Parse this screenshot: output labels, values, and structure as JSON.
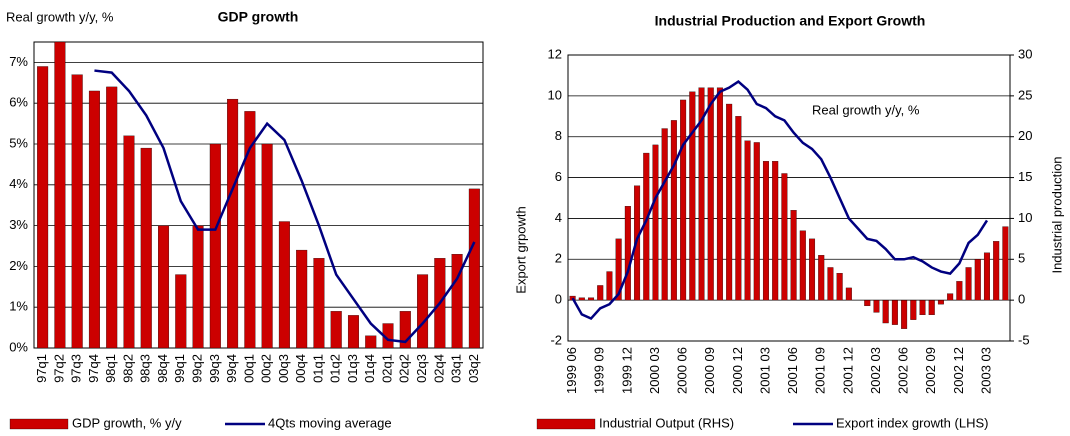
{
  "chart_data": [
    {
      "type": "combo",
      "title": "GDP growth",
      "annotation": "Real growth y/y, %",
      "categories": [
        "97q1",
        "97q2",
        "97q3",
        "97q4",
        "98q1",
        "98q2",
        "98q3",
        "98q4",
        "99q1",
        "99q2",
        "99q3",
        "99q4",
        "00q1",
        "00q2",
        "00q3",
        "00q4",
        "01q1",
        "01q2",
        "01q3",
        "01q4",
        "02q1",
        "02q2",
        "02q3",
        "02q4",
        "03q1",
        "03q2"
      ],
      "series": [
        {
          "name": "GDP growth, % y/y",
          "kind": "bar",
          "color": "#cc0000",
          "values": [
            6.9,
            7.5,
            6.7,
            6.3,
            6.4,
            5.2,
            4.9,
            3.0,
            1.8,
            3.0,
            5.0,
            6.1,
            5.8,
            5.0,
            3.1,
            2.4,
            2.2,
            0.9,
            0.8,
            0.3,
            0.6,
            0.9,
            1.8,
            2.2,
            2.3,
            3.9
          ]
        },
        {
          "name": "4Qts moving average",
          "kind": "line",
          "color": "#000080",
          "values": [
            null,
            null,
            null,
            6.8,
            6.75,
            6.3,
            5.7,
            4.9,
            3.6,
            2.9,
            2.9,
            3.9,
            4.9,
            5.5,
            5.1,
            4.1,
            3.0,
            1.8,
            1.2,
            0.6,
            0.2,
            0.15,
            0.6,
            1.1,
            1.7,
            2.6
          ]
        }
      ],
      "ylim": [
        0,
        7.5
      ],
      "yticks": [
        {
          "value": 0,
          "label": "0%"
        },
        {
          "value": 1,
          "label": "1%"
        },
        {
          "value": 2,
          "label": "2%"
        },
        {
          "value": 3,
          "label": "3%"
        },
        {
          "value": 4,
          "label": "4%"
        },
        {
          "value": 5,
          "label": "5%"
        },
        {
          "value": 6,
          "label": "6%"
        },
        {
          "value": 7,
          "label": "7%"
        }
      ],
      "grid": true
    },
    {
      "type": "combo",
      "title": "Industrial Production and Export Growth",
      "annotation": "Real growth y/y, %",
      "ylabel": "Export  grpowth",
      "y2label": "Industrial production",
      "categories": [
        "1999 06",
        null,
        null,
        "1999 09",
        null,
        null,
        "1999 12",
        null,
        null,
        "2000 03",
        null,
        null,
        "2000 06",
        null,
        null,
        "2000 09",
        null,
        null,
        "2000 12",
        null,
        null,
        "2001 03",
        null,
        null,
        "2001 06",
        null,
        null,
        "2001 09",
        null,
        null,
        "2001 12",
        null,
        null,
        "2002 03",
        null,
        null,
        "2002 06",
        null,
        null,
        "2002 09",
        null,
        null,
        "2002 12",
        null,
        null,
        "2003 03",
        null,
        null
      ],
      "series": [
        {
          "name": "Industrial Output (RHS)",
          "kind": "bar",
          "axis": "y2",
          "color": "#cc0000",
          "values": [
            0.5,
            0.3,
            0.3,
            1.8,
            3.5,
            7.5,
            11.5,
            14,
            18,
            19,
            21,
            22,
            24.5,
            25.5,
            26,
            26,
            26,
            24,
            22.5,
            19.5,
            19.3,
            17,
            17,
            15.5,
            11,
            8.5,
            7.5,
            5.5,
            4,
            3.3,
            1.5,
            0,
            -0.7,
            -1.5,
            -2.8,
            -3,
            -3.5,
            -2.4,
            -1.8,
            -1.8,
            -0.5,
            0.8,
            2.3,
            4,
            5,
            5.8,
            7.2,
            9
          ]
        },
        {
          "name": "Export index growth (LHS)",
          "kind": "line",
          "color": "#000080",
          "values": [
            0.1,
            -0.7,
            -0.9,
            -0.4,
            -0.2,
            0.3,
            1.4,
            3.0,
            3.9,
            5.0,
            5.8,
            6.6,
            7.6,
            8.2,
            8.8,
            9.6,
            10.2,
            10.4,
            10.7,
            10.3,
            9.6,
            9.4,
            9.0,
            8.8,
            8.2,
            7.7,
            7.4,
            6.9,
            6.0,
            5.0,
            4.0,
            3.5,
            3.0,
            2.9,
            2.5,
            2.0,
            2.0,
            2.1,
            1.9,
            1.6,
            1.4,
            1.3,
            1.8,
            2.8,
            3.2,
            3.9,
            null,
            null
          ]
        }
      ],
      "ylim": [
        -2,
        12
      ],
      "yticks": [
        -2,
        0,
        2,
        4,
        6,
        8,
        10,
        12
      ],
      "y2lim": [
        -5,
        30
      ],
      "y2ticks": [
        -5,
        0,
        5,
        10,
        15,
        20,
        25,
        30
      ],
      "grid": true
    }
  ]
}
